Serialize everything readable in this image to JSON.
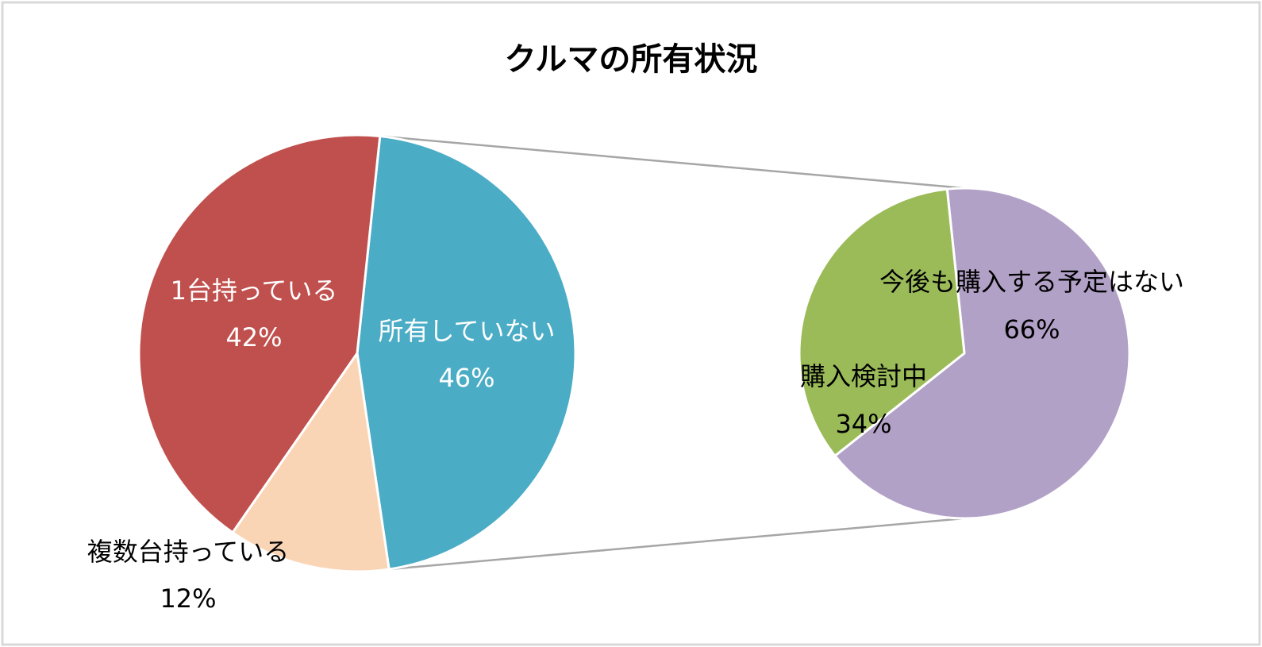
{
  "chart_data": {
    "type": "pie",
    "subtype": "pie-of-pie",
    "title": "クルマの所有状況",
    "primary": {
      "slices": [
        {
          "name": "所有していない",
          "value": 46,
          "value_label": "46%",
          "color": "#4BACC6",
          "label_color": "#FFFFFF"
        },
        {
          "name": "複数台持っている",
          "value": 12,
          "value_label": "12%",
          "color": "#FAD5B5",
          "label_color": "#000000"
        },
        {
          "name": "1台持っている",
          "value": 42,
          "value_label": "42%",
          "color": "#C0504D",
          "label_color": "#FFFFFF"
        }
      ]
    },
    "secondary": {
      "expands": "所有していない",
      "slices": [
        {
          "name": "今後も購入する予定はない",
          "value": 66,
          "value_label": "66%",
          "color": "#B2A1C7",
          "label_color": "#000000"
        },
        {
          "name": "購入検討中",
          "value": 34,
          "value_label": "34%",
          "color": "#9BBB59",
          "label_color": "#000000"
        }
      ]
    },
    "connector_color": "#A6A6A6",
    "frame_color": "#D9D9D9"
  }
}
